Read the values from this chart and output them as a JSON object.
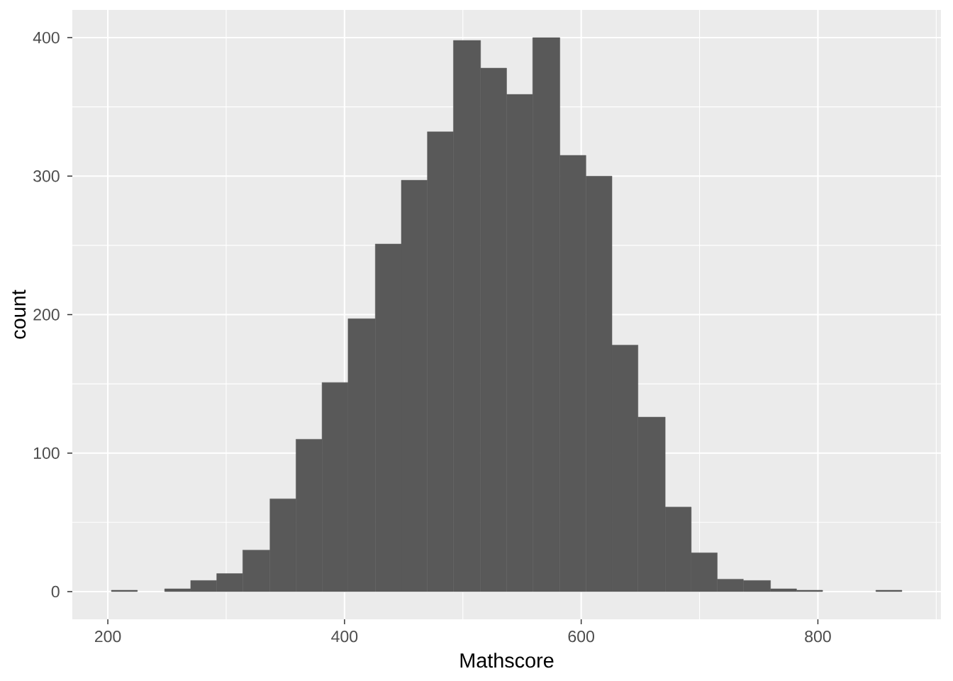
{
  "chart_data": {
    "type": "histogram",
    "xlabel": "Mathscore",
    "ylabel": "count",
    "bins": [
      203,
      225,
      248,
      270,
      292,
      314,
      337,
      359,
      381,
      403,
      426,
      448,
      470,
      492,
      515,
      537,
      559,
      582,
      604,
      626,
      648,
      671,
      693,
      715,
      737,
      760,
      782,
      804,
      849,
      871
    ],
    "values": [
      1,
      0,
      2,
      8,
      13,
      30,
      67,
      110,
      151,
      197,
      251,
      297,
      332,
      398,
      378,
      359,
      400,
      315,
      300,
      178,
      126,
      61,
      28,
      9,
      8,
      2,
      1,
      0,
      1
    ],
    "color": "#595959",
    "xlim": [
      170,
      904
    ],
    "ylim": [
      -20,
      420
    ],
    "xticks": [
      200,
      400,
      600,
      800
    ],
    "yticks": [
      0,
      100,
      200,
      300,
      400
    ],
    "grid": true
  }
}
